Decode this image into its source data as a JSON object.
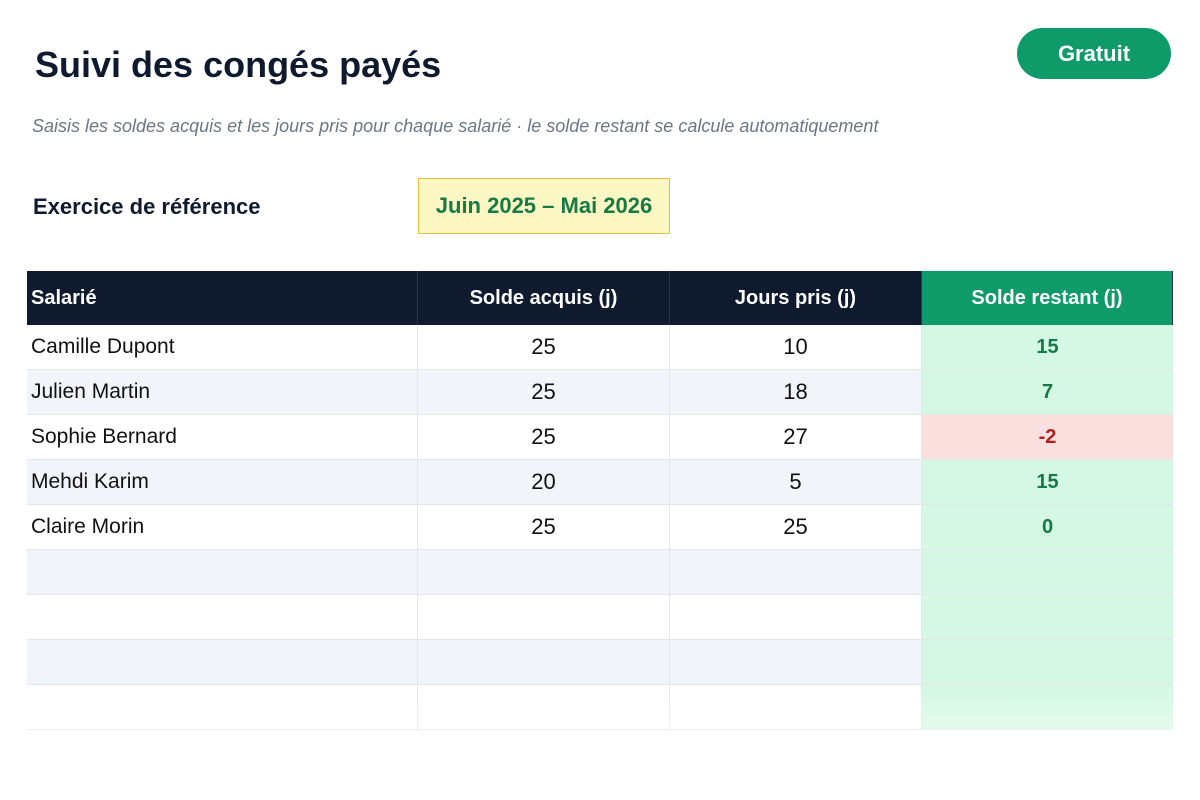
{
  "header": {
    "title": "Suivi des congés payés",
    "badge": "Gratuit",
    "subtitle": "Saisis les soldes acquis et les jours pris pour chaque salarié · le solde restant se calcule automatiquement"
  },
  "period": {
    "label": "Exercice de référence",
    "value": "Juin 2025 – Mai 2026"
  },
  "table": {
    "columns": [
      "Salarié",
      "Solde acquis (j)",
      "Jours pris (j)",
      "Solde restant (j)"
    ],
    "rows": [
      [
        "Camille Dupont",
        25,
        10,
        15
      ],
      [
        "Julien Martin",
        25,
        18,
        7
      ],
      [
        "Sophie Bernard",
        25,
        27,
        -2
      ],
      [
        "Mehdi Karim",
        20,
        5,
        15
      ],
      [
        "Claire Morin",
        25,
        25,
        0
      ]
    ]
  }
}
